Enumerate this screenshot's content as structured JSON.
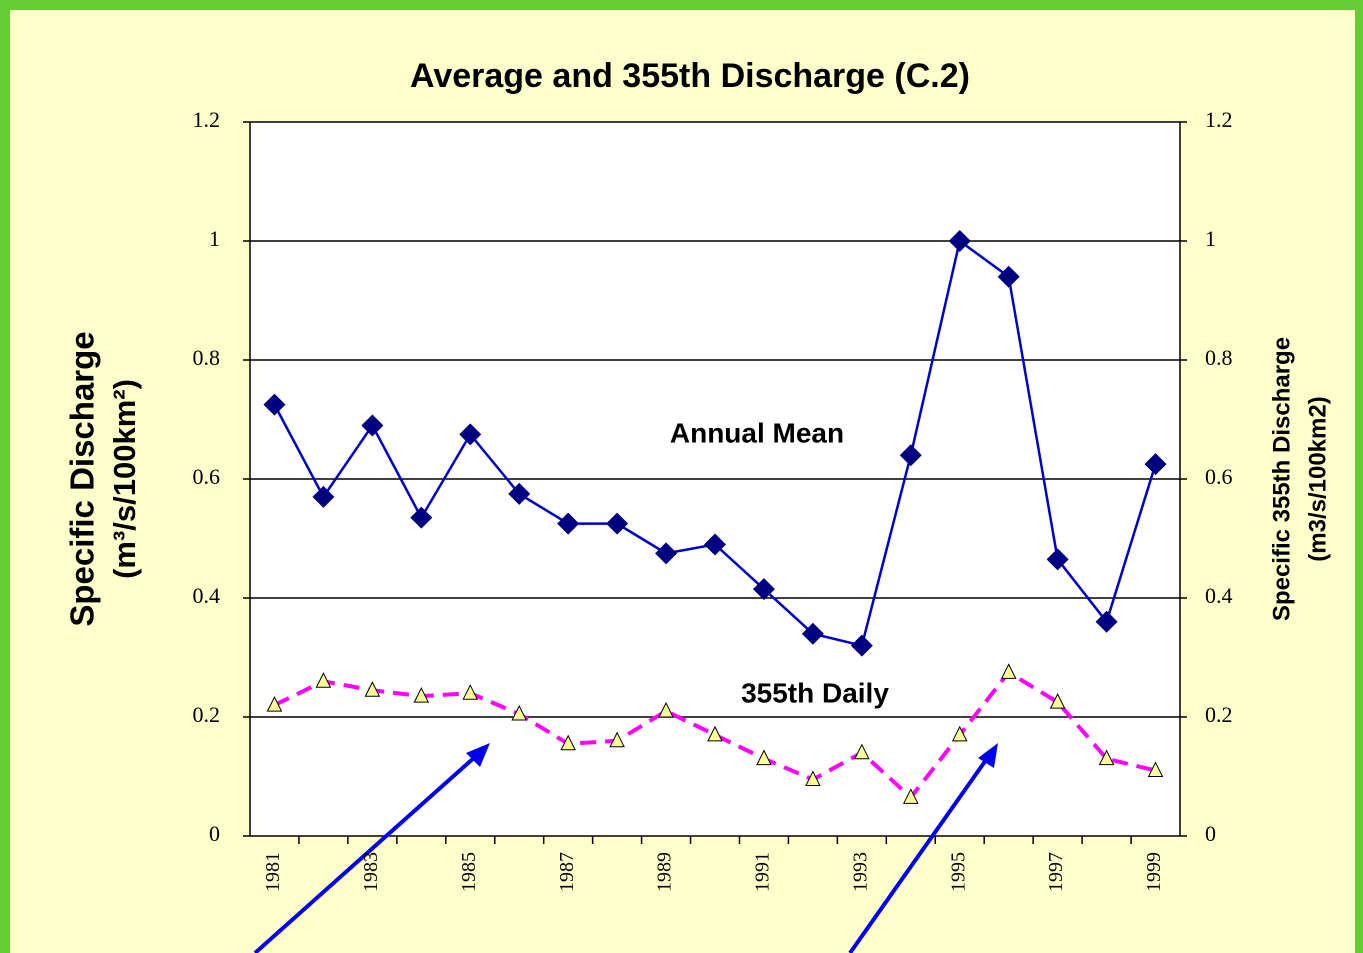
{
  "chart_data": {
    "type": "line",
    "title": "Average and 355th Discharge (C.2)",
    "y_label": [
      "Specific Discharge",
      "(m³/s/100km²)"
    ],
    "y2_label": [
      "Specific 355th Discharge",
      "(m3/s/100km2)"
    ],
    "categories": [
      "1981",
      null,
      "1983",
      null,
      "1985",
      null,
      "1987",
      null,
      "1989",
      null,
      "1991",
      null,
      "1993",
      null,
      "1995",
      null,
      "1997",
      null,
      "1999"
    ],
    "series": [
      {
        "name": "Annual Mean",
        "color": "#0000cc",
        "marker": "diamond",
        "values": [
          0.725,
          0.57,
          0.69,
          0.535,
          0.675,
          0.575,
          0.525,
          0.525,
          0.475,
          0.49,
          0.415,
          0.34,
          0.32,
          0.64,
          1.0,
          0.94,
          0.465,
          0.36,
          0.625
        ]
      },
      {
        "name": "355th Daily",
        "color": "#ff00ff",
        "marker": "triangle",
        "axis": "y2",
        "values": [
          0.22,
          0.26,
          0.245,
          0.235,
          0.24,
          0.205,
          0.155,
          0.16,
          0.21,
          0.17,
          0.13,
          0.095,
          0.14,
          0.065,
          0.17,
          0.275,
          0.225,
          0.13,
          0.11
        ]
      }
    ],
    "ylim": [
      0,
      1.2
    ],
    "yticks": [
      0,
      0.2,
      0.4,
      0.6,
      0.8,
      1,
      1.2
    ],
    "y2lim": [
      0,
      1.2
    ],
    "y2ticks": [
      0,
      0.2,
      0.4,
      0.6,
      0.8,
      1,
      1.2
    ],
    "grid": true
  }
}
